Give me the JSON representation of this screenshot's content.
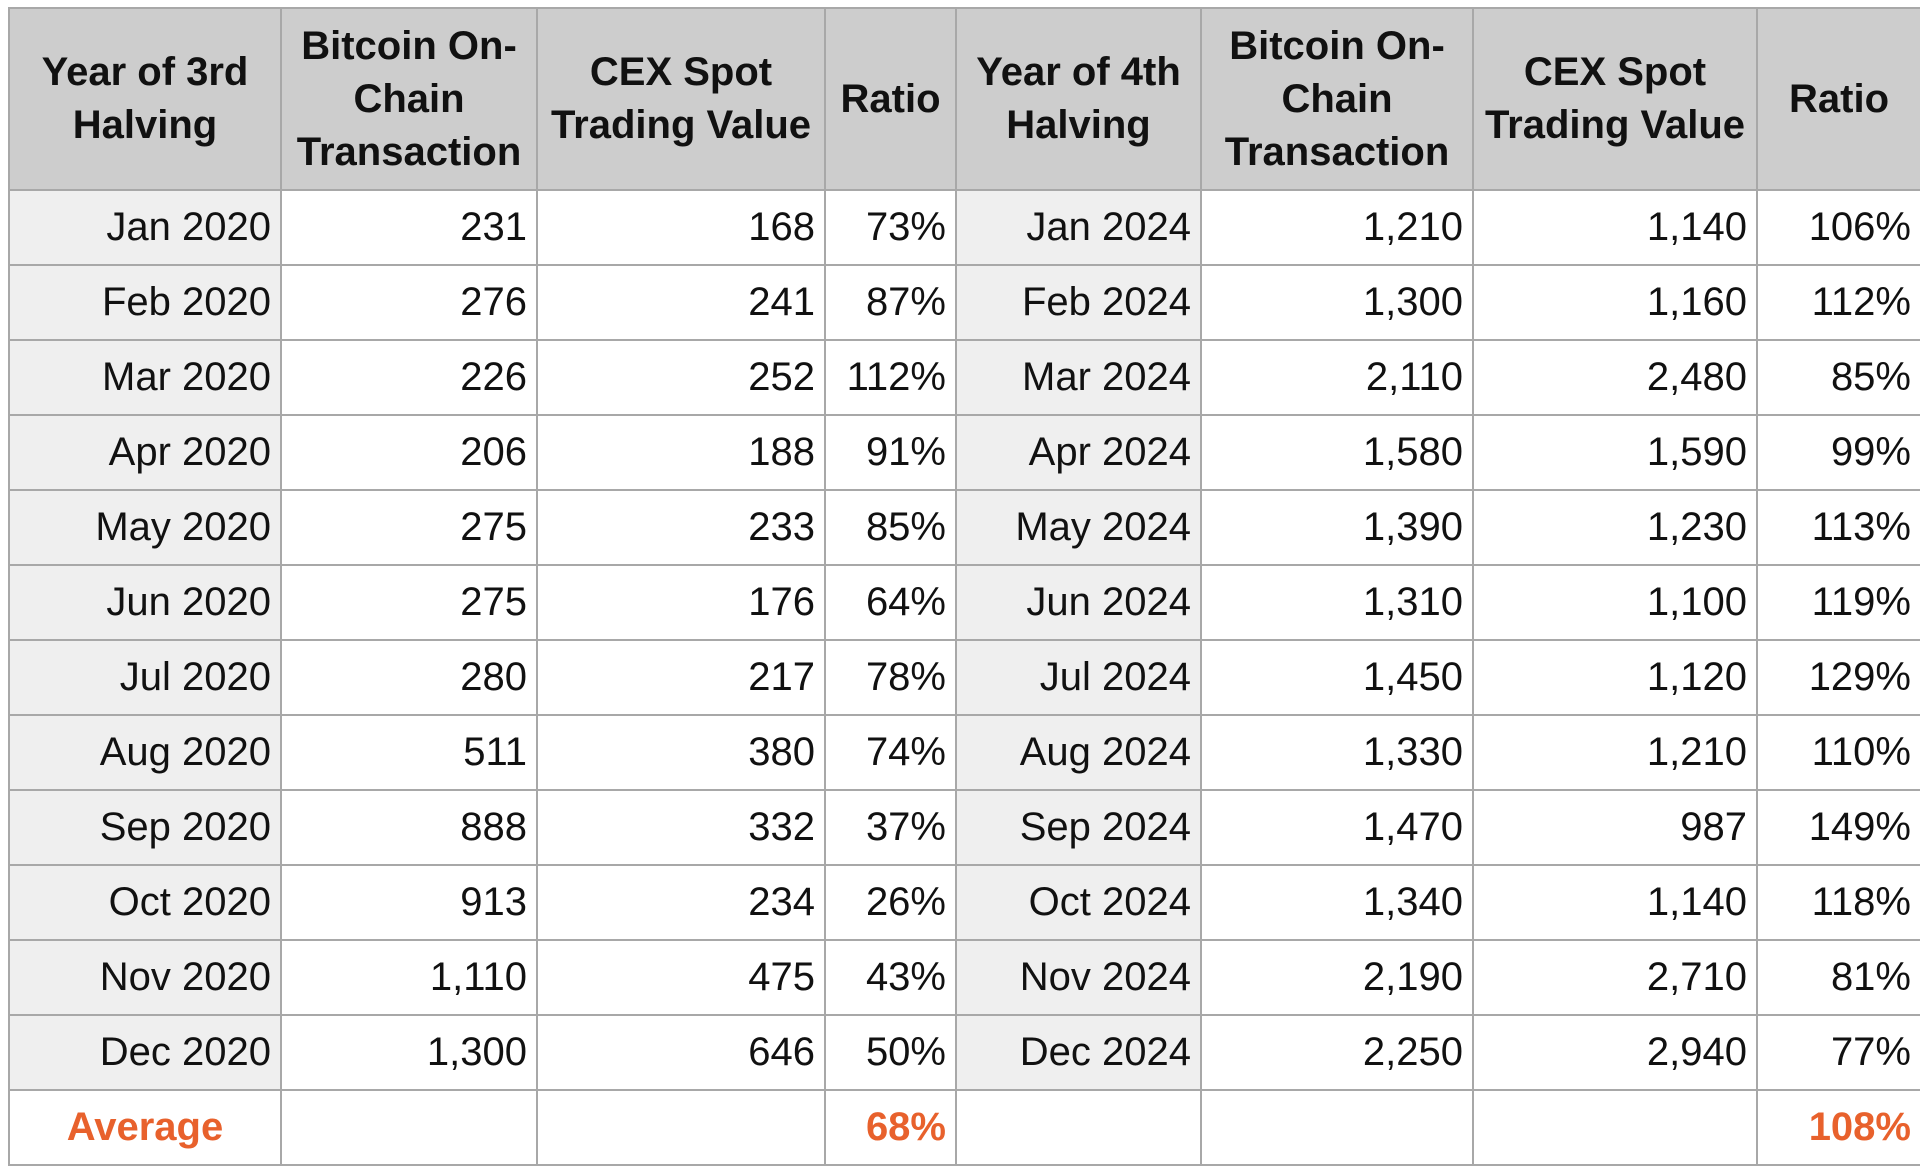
{
  "table": {
    "headers": [
      "Year of 3rd Halving",
      "Bitcoin On-Chain Transaction",
      "CEX Spot Trading Value",
      "Ratio",
      "Year of 4th Halving",
      "Bitcoin On-Chain Transaction",
      "CEX Spot Trading Value",
      "Ratio"
    ],
    "rows": [
      [
        "Jan 2020",
        "231",
        "168",
        "73%",
        "Jan 2024",
        "1,210",
        "1,140",
        "106%"
      ],
      [
        "Feb 2020",
        "276",
        "241",
        "87%",
        "Feb 2024",
        "1,300",
        "1,160",
        "112%"
      ],
      [
        "Mar 2020",
        "226",
        "252",
        "112%",
        "Mar 2024",
        "2,110",
        "2,480",
        "85%"
      ],
      [
        "Apr 2020",
        "206",
        "188",
        "91%",
        "Apr 2024",
        "1,580",
        "1,590",
        "99%"
      ],
      [
        "May 2020",
        "275",
        "233",
        "85%",
        "May 2024",
        "1,390",
        "1,230",
        "113%"
      ],
      [
        "Jun 2020",
        "275",
        "176",
        "64%",
        "Jun 2024",
        "1,310",
        "1,100",
        "119%"
      ],
      [
        "Jul 2020",
        "280",
        "217",
        "78%",
        "Jul 2024",
        "1,450",
        "1,120",
        "129%"
      ],
      [
        "Aug 2020",
        "511",
        "380",
        "74%",
        "Aug 2024",
        "1,330",
        "1,210",
        "110%"
      ],
      [
        "Sep 2020",
        "888",
        "332",
        "37%",
        "Sep 2024",
        "1,470",
        "987",
        "149%"
      ],
      [
        "Oct 2020",
        "913",
        "234",
        "26%",
        "Oct 2024",
        "1,340",
        "1,140",
        "118%"
      ],
      [
        "Nov 2020",
        "1,110",
        "475",
        "43%",
        "Nov 2024",
        "2,190",
        "2,710",
        "81%"
      ],
      [
        "Dec 2020",
        "1,300",
        "646",
        "50%",
        "Dec 2024",
        "2,250",
        "2,940",
        "77%"
      ]
    ],
    "average": {
      "label": "Average",
      "ratio_3rd": "68%",
      "ratio_4th": "108%"
    },
    "colors": {
      "header_bg": "#cdcdcd",
      "label_bg": "#efefef",
      "grid": "#a8a8a8",
      "average_text": "#e8612c"
    }
  }
}
